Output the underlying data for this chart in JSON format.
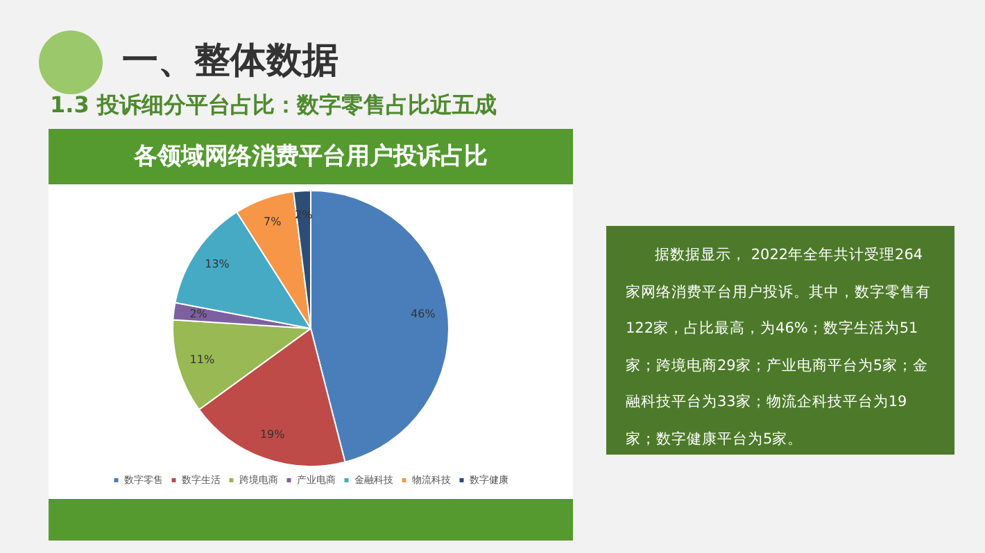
{
  "chart_data": {
    "type": "pie",
    "title": "各领域网络消费平台用户投诉占比",
    "categories": [
      "数字零售",
      "数字生活",
      "跨境电商",
      "产业电商",
      "金融科技",
      "物流科技",
      "数字健康"
    ],
    "values": [
      46,
      19,
      11,
      2,
      13,
      7,
      2
    ],
    "value_labels": [
      "46%",
      "19%",
      "11%",
      "2%",
      "13%",
      "7%",
      "2%"
    ],
    "colors": [
      "#4a7ebb",
      "#be4b48",
      "#98b954",
      "#7d60a0",
      "#46aac5",
      "#f79646",
      "#2c4d75"
    ],
    "legend": "bottom",
    "annotations": [
      "一、整体数据",
      "1.3 投诉细分平台占比：数字零售占比近五成",
      "据数据显示， 2022年全年共计受理264家网络消费平台用户投诉。其中，数字零售有122家，占比最高，为46%；数字生活为51家；跨境电商29家；产业电商平台为5家；金融科技平台为33家；物流企科技平台为19家；数字健康平台为5家。"
    ]
  }
}
